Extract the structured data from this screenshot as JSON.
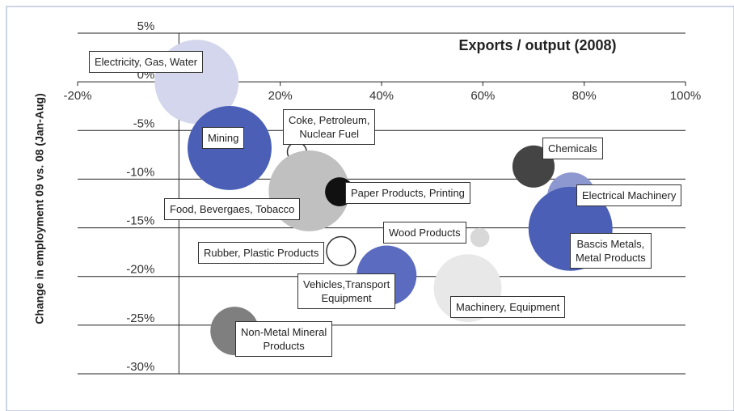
{
  "chart_data": {
    "type": "bubble",
    "title": "Exports / output (2008)",
    "y_label": "Change in employment 09 vs. 08 (Jan-Aug)",
    "xlim": [
      -20,
      100
    ],
    "xticks": [
      {
        "value": -20,
        "label": "-20%"
      },
      {
        "value": 0,
        "label": "0%"
      },
      {
        "value": 20,
        "label": "20%"
      },
      {
        "value": 40,
        "label": "40%"
      },
      {
        "value": 60,
        "label": "60%"
      },
      {
        "value": 80,
        "label": "80%"
      },
      {
        "value": 100,
        "label": "100%"
      }
    ],
    "ylim": [
      -30,
      5
    ],
    "yticks": [
      {
        "value": 5,
        "label": "5%"
      },
      {
        "value": 0,
        "label": "0%"
      },
      {
        "value": -5,
        "label": "-5%"
      },
      {
        "value": -10,
        "label": "-10%"
      },
      {
        "value": -15,
        "label": "-15%"
      },
      {
        "value": -20,
        "label": "-20%"
      },
      {
        "value": -25,
        "label": "-25%"
      },
      {
        "value": -30,
        "label": "-30%"
      }
    ],
    "grid": true,
    "series": [
      {
        "name": "Electricity, Gas, Water",
        "color": "#d3d6ec",
        "x": 3.5,
        "y": 0,
        "size": 27
      },
      {
        "name": "Mining",
        "color": "#4a5fb5",
        "x": 10,
        "y": -6.8,
        "size": 27
      },
      {
        "name": "Coke, Petroleum,\nNuclear Fuel",
        "color": "#ffffff",
        "x": 23.3,
        "y": -7.2,
        "size": 1.4
      },
      {
        "name": "Food, Bevergaes, Tobacco",
        "color": "#c0c0c0",
        "x": 25.7,
        "y": -11.2,
        "size": 25
      },
      {
        "name": "Paper Products, Printing",
        "color": "#111111",
        "x": 31.7,
        "y": -11.3,
        "size": 3.2
      },
      {
        "name": "Chemicals",
        "color": "#444444",
        "x": 70,
        "y": -8.7,
        "size": 6.8
      },
      {
        "name": "Electrical Machinery",
        "color": "#8e98d0",
        "x": 77.5,
        "y": -11.8,
        "size": 9
      },
      {
        "name": "Bascis Metals,\nMetal Products",
        "color": "#4a5fb5",
        "x": 77.3,
        "y": -15.1,
        "size": 27
      },
      {
        "name": "Wood Products",
        "color": "#d8d8d8",
        "x": 59.4,
        "y": -16,
        "size": 1.4
      },
      {
        "name": "Rubber, Plastic Products",
        "color": "#ffffff",
        "x": 32,
        "y": -17.4,
        "size": 3.2
      },
      {
        "name": "Vehicles,Transport\nEquipment",
        "color": "#5b6cc0",
        "x": 41,
        "y": -19.9,
        "size": 13.7
      },
      {
        "name": "Machinery, Equipment",
        "color": "#e8e8e8",
        "x": 57,
        "y": -21.2,
        "size": 17.6
      },
      {
        "name": "Non-Metal Mineral\nProducts",
        "color": "#7f7f7f",
        "x": 11,
        "y": -25.6,
        "size": 9
      }
    ]
  }
}
